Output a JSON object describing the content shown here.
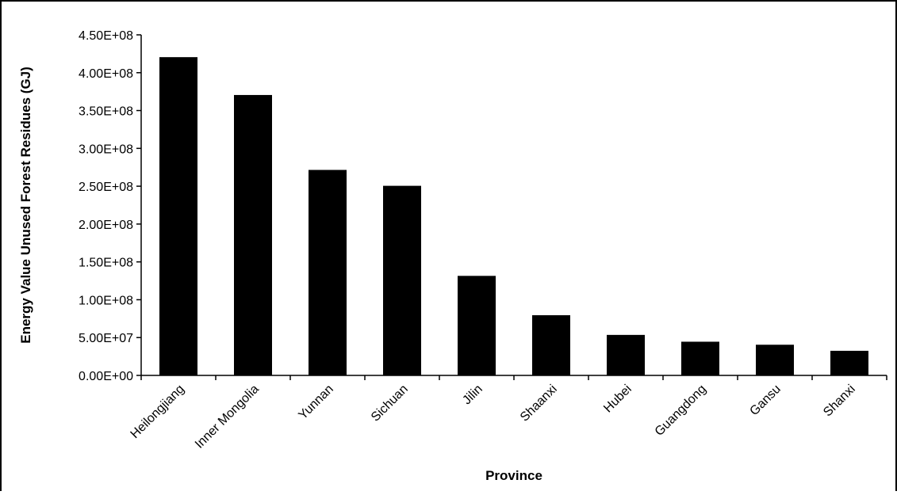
{
  "chart_data": {
    "type": "bar",
    "title": "",
    "xlabel": "Province",
    "ylabel": "Energy Value Unused Forest Residues (GJ)",
    "categories": [
      "Heilongjiang",
      "Inner Mongolia",
      "Yunnan",
      "Sichuan",
      "Jilin",
      "Shaanxi",
      "Hubei",
      "Guangdong",
      "Gansu",
      "Shanxi"
    ],
    "values": [
      420000000,
      370000000,
      271000000,
      250000000,
      131000000,
      79000000,
      53000000,
      44000000,
      40000000,
      32000000
    ],
    "ylim": [
      0,
      450000000
    ],
    "yticks": [
      0,
      50000000,
      100000000,
      150000000,
      200000000,
      250000000,
      300000000,
      350000000,
      400000000,
      450000000
    ],
    "ytick_labels": [
      "0.00E+00",
      "5.00E+07",
      "1.00E+08",
      "1.50E+08",
      "2.00E+08",
      "2.50E+08",
      "3.00E+08",
      "3.50E+08",
      "4.00E+08",
      "4.50E+08"
    ],
    "grid": false,
    "legend": "none",
    "bar_color": "#000000"
  }
}
